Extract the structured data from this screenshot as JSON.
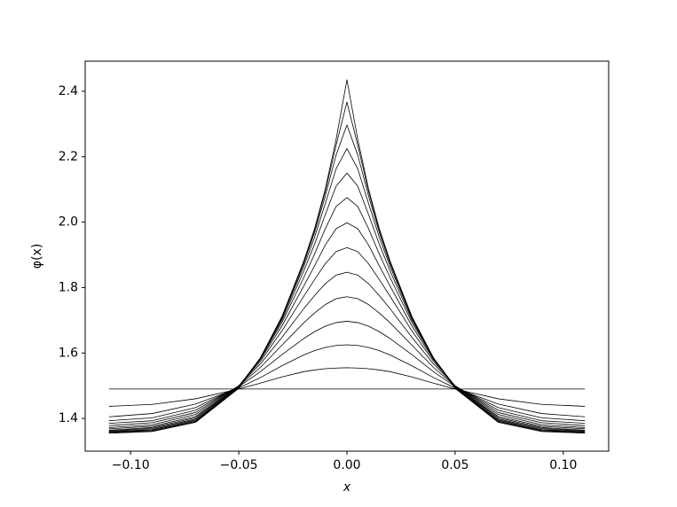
{
  "chart_data": {
    "type": "line",
    "xlabel": "x",
    "ylabel": "φ(x)",
    "x": [
      -0.11,
      -0.09,
      -0.07,
      -0.05,
      -0.04,
      -0.03,
      -0.02,
      -0.015,
      -0.01,
      -0.005,
      0,
      0.005,
      0.01,
      0.015,
      0.02,
      0.03,
      0.04,
      0.05,
      0.07,
      0.09,
      0.11
    ],
    "xlim": [
      -0.121,
      0.121
    ],
    "ylim": [
      1.3,
      2.492
    ],
    "xticks": [
      {
        "value": -0.1,
        "label": "−0.10"
      },
      {
        "value": -0.05,
        "label": "−0.05"
      },
      {
        "value": 0,
        "label": "0.00"
      },
      {
        "value": 0.05,
        "label": "0.05"
      },
      {
        "value": 0.1,
        "label": "0.10"
      }
    ],
    "yticks": [
      1.4,
      1.6,
      1.8,
      {
        "value": 2,
        "label": "2.0"
      },
      2.2,
      2.4
    ],
    "grid": false,
    "series": [
      {
        "color": "#000000",
        "values": [
          1.49,
          1.49,
          1.49,
          1.49,
          1.49,
          1.49,
          1.49,
          1.49,
          1.49,
          1.49,
          1.49,
          1.49,
          1.49,
          1.49,
          1.49,
          1.49,
          1.49,
          1.49,
          1.49,
          1.49,
          1.49
        ]
      },
      {
        "color": "#000000",
        "values": [
          1.437,
          1.443,
          1.46,
          1.49,
          1.508,
          1.527,
          1.543,
          1.548,
          1.552,
          1.554,
          1.555,
          1.554,
          1.552,
          1.548,
          1.543,
          1.527,
          1.508,
          1.49,
          1.46,
          1.443,
          1.437
        ]
      },
      {
        "color": "#000000",
        "values": [
          1.405,
          1.415,
          1.444,
          1.493,
          1.525,
          1.561,
          1.594,
          1.607,
          1.617,
          1.623,
          1.625,
          1.623,
          1.617,
          1.607,
          1.594,
          1.561,
          1.525,
          1.493,
          1.444,
          1.415,
          1.405
        ]
      },
      {
        "color": "#000000",
        "values": [
          1.393,
          1.402,
          1.433,
          1.497,
          1.543,
          1.595,
          1.644,
          1.665,
          1.682,
          1.693,
          1.697,
          1.693,
          1.682,
          1.665,
          1.644,
          1.595,
          1.543,
          1.497,
          1.433,
          1.402,
          1.393
        ]
      },
      {
        "color": "#000000",
        "values": [
          1.385,
          1.393,
          1.425,
          1.499,
          1.556,
          1.624,
          1.692,
          1.722,
          1.748,
          1.766,
          1.772,
          1.766,
          1.748,
          1.722,
          1.692,
          1.624,
          1.556,
          1.499,
          1.425,
          1.393,
          1.385
        ]
      },
      {
        "color": "#000000",
        "values": [
          1.378,
          1.387,
          1.418,
          1.5,
          1.567,
          1.648,
          1.735,
          1.775,
          1.812,
          1.838,
          1.847,
          1.838,
          1.812,
          1.775,
          1.735,
          1.648,
          1.567,
          1.5,
          1.418,
          1.387,
          1.378
        ]
      },
      {
        "color": "#000000",
        "values": [
          1.372,
          1.381,
          1.412,
          1.5,
          1.575,
          1.668,
          1.773,
          1.824,
          1.873,
          1.91,
          1.922,
          1.91,
          1.873,
          1.824,
          1.773,
          1.668,
          1.575,
          1.5,
          1.412,
          1.381,
          1.372
        ]
      },
      {
        "color": "#000000",
        "values": [
          1.368,
          1.376,
          1.406,
          1.499,
          1.58,
          1.683,
          1.804,
          1.866,
          1.93,
          1.98,
          1.998,
          1.98,
          1.93,
          1.866,
          1.804,
          1.683,
          1.58,
          1.499,
          1.406,
          1.376,
          1.368
        ]
      },
      {
        "color": "#000000",
        "values": [
          1.364,
          1.372,
          1.402,
          1.498,
          1.583,
          1.694,
          1.83,
          1.902,
          1.98,
          2.048,
          2.075,
          2.048,
          1.98,
          1.902,
          1.83,
          1.694,
          1.583,
          1.498,
          1.402,
          1.372,
          1.364
        ]
      },
      {
        "color": "#000000",
        "values": [
          1.362,
          1.369,
          1.398,
          1.497,
          1.585,
          1.701,
          1.85,
          1.932,
          2.023,
          2.11,
          2.15,
          2.11,
          2.023,
          1.932,
          1.85,
          1.701,
          1.585,
          1.497,
          1.398,
          1.369,
          1.362
        ]
      },
      {
        "color": "#000000",
        "values": [
          1.36,
          1.366,
          1.395,
          1.495,
          1.585,
          1.706,
          1.864,
          1.953,
          2.057,
          2.163,
          2.225,
          2.163,
          2.057,
          1.953,
          1.864,
          1.706,
          1.585,
          1.495,
          1.395,
          1.366,
          1.36
        ]
      },
      {
        "color": "#000000",
        "values": [
          1.358,
          1.364,
          1.392,
          1.494,
          1.585,
          1.709,
          1.873,
          1.967,
          2.08,
          2.205,
          2.297,
          2.205,
          2.08,
          1.967,
          1.873,
          1.709,
          1.585,
          1.494,
          1.392,
          1.364,
          1.358
        ]
      },
      {
        "color": "#000000",
        "values": [
          1.357,
          1.362,
          1.39,
          1.493,
          1.585,
          1.711,
          1.878,
          1.975,
          2.094,
          2.235,
          2.367,
          2.235,
          2.094,
          1.975,
          1.878,
          1.711,
          1.585,
          1.493,
          1.39,
          1.362,
          1.357
        ]
      },
      {
        "color": "#000000",
        "values": [
          1.355,
          1.36,
          1.388,
          1.492,
          1.585,
          1.712,
          1.88,
          1.979,
          2.101,
          2.253,
          2.435,
          2.253,
          2.101,
          1.979,
          1.88,
          1.712,
          1.585,
          1.492,
          1.388,
          1.36,
          1.355
        ]
      }
    ]
  }
}
